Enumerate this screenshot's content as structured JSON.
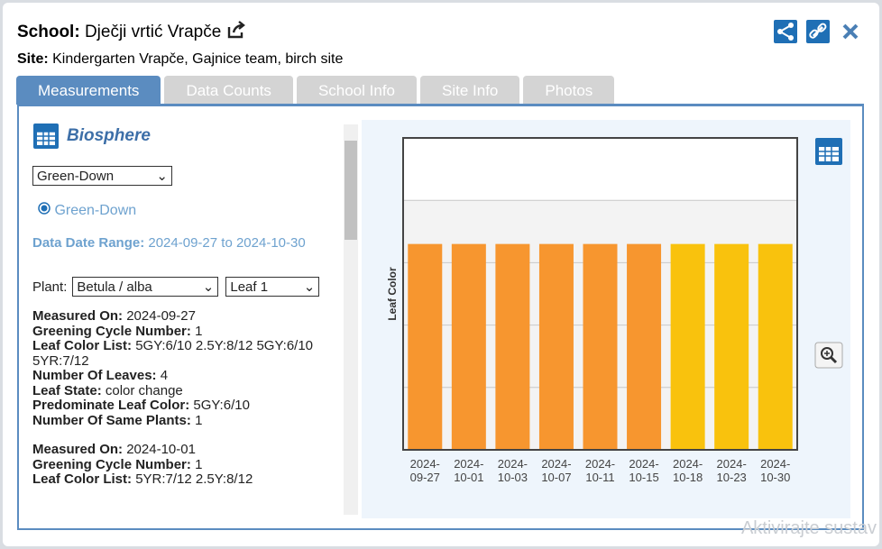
{
  "header": {
    "school_label": "School:",
    "school": "Dječji vrtić Vrapče",
    "site_label": "Site:",
    "site": "Kindergarten Vrapče, Gajnice team, birch site"
  },
  "tabs": [
    "Measurements",
    "Data Counts",
    "School Info",
    "Site Info",
    "Photos"
  ],
  "panel": {
    "title": "Biosphere",
    "protocol_select": "Green-Down",
    "radio": "Green-Down",
    "date_range_label": "Data Date Range:",
    "date_range": "2024-09-27 to 2024-10-30",
    "plant_label": "Plant:",
    "plant_select": "Betula / alba",
    "leaf_select": "Leaf 1",
    "measurements": [
      [
        {
          "label": "Measured On:",
          "value": "2024-09-27"
        },
        {
          "label": "Greening Cycle Number:",
          "value": "1"
        },
        {
          "label": "Leaf Color List:",
          "value": "5GY:6/10 2.5Y:8/12 5GY:6/10 5YR:7/12"
        },
        {
          "label": "Number Of Leaves:",
          "value": "4"
        },
        {
          "label": "Leaf State:",
          "value": "color change"
        },
        {
          "label": "Predominate Leaf Color:",
          "value": "5GY:6/10"
        },
        {
          "label": "Number Of Same Plants:",
          "value": "1"
        }
      ],
      [
        {
          "label": "Measured On:",
          "value": "2024-10-01"
        },
        {
          "label": "Greening Cycle Number:",
          "value": "1"
        },
        {
          "label": "Leaf Color List:",
          "value": "5YR:7/12 2.5Y:8/12"
        }
      ]
    ]
  },
  "chart_data": {
    "type": "bar",
    "y_label": "Leaf Color",
    "categories": [
      "2024-09-27",
      "2024-10-01",
      "2024-10-03",
      "2024-10-07",
      "2024-10-11",
      "2024-10-15",
      "2024-10-18",
      "2024-10-23",
      "2024-10-30"
    ],
    "values": [
      3.3,
      3.3,
      3.3,
      3.3,
      3.3,
      3.3,
      3.3,
      3.3,
      3.3
    ],
    "colors": [
      "#f7962f",
      "#f7962f",
      "#f7962f",
      "#f7962f",
      "#f7962f",
      "#f7962f",
      "#f9c20d",
      "#f9c20d",
      "#f9c20d"
    ],
    "ylim": [
      0,
      5
    ],
    "yticks": [
      1,
      2,
      3,
      4
    ],
    "grid": true
  },
  "watermark": "Aktivirajte sustav"
}
